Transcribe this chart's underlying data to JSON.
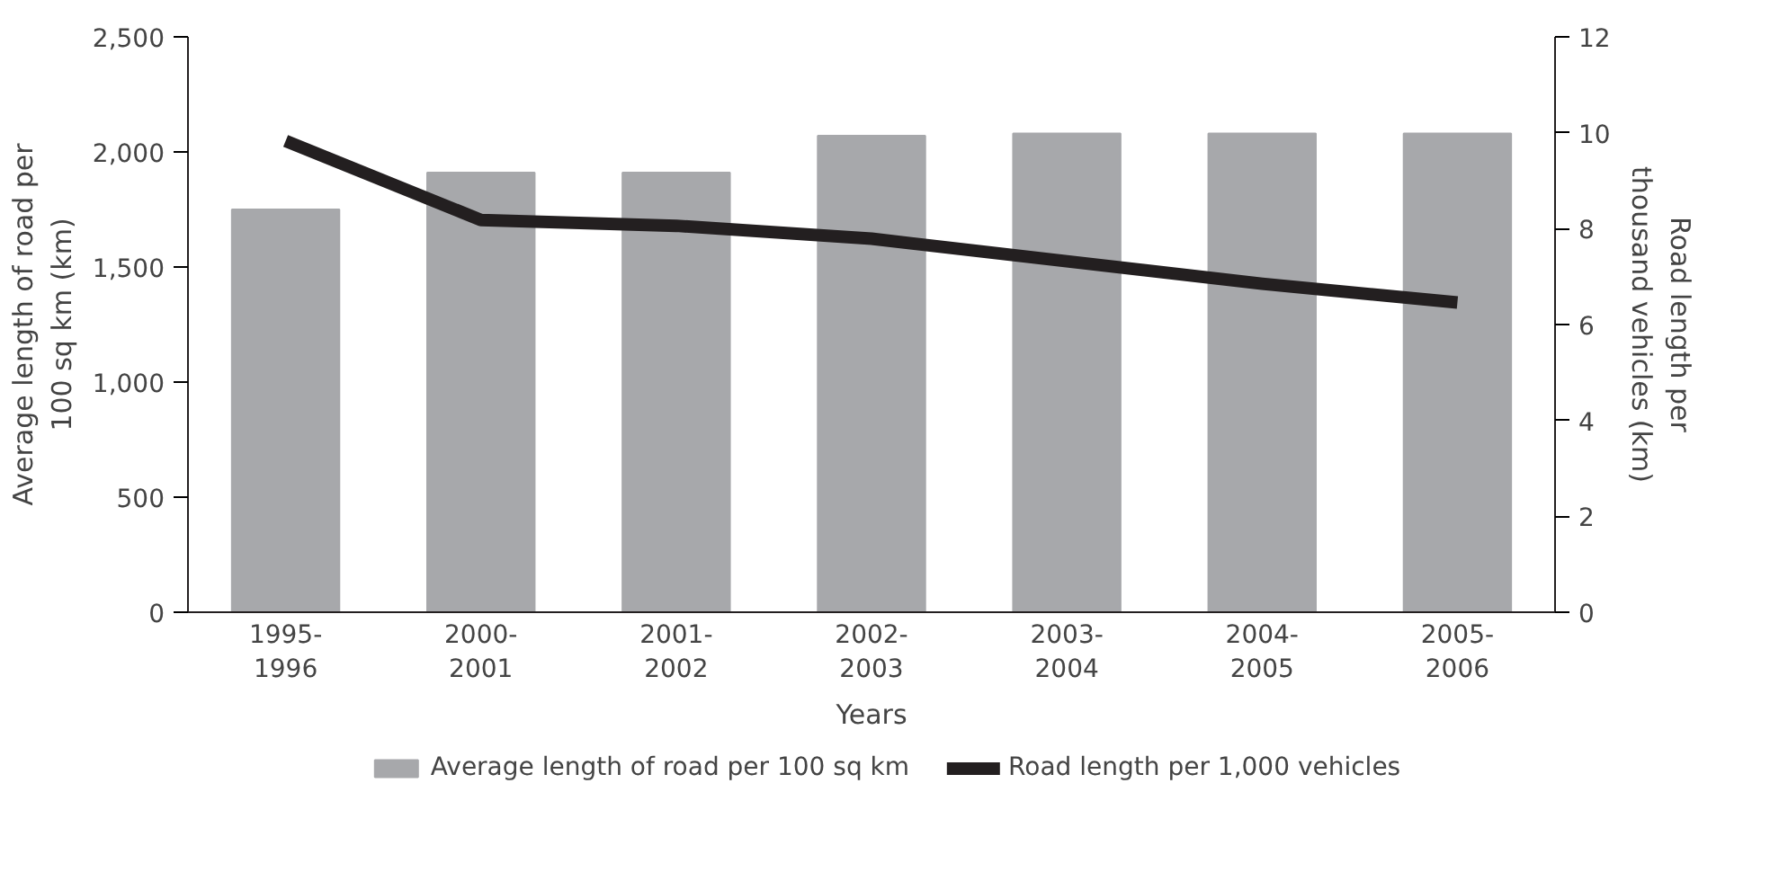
{
  "chart_data": {
    "type": "bar",
    "xlabel": "Years",
    "ylabel": "Average length of road per 100 sq km (km)",
    "y2label": "Road length per thousand vehicles (km)",
    "categories": [
      "1995-\n1996",
      "2000-\n2001",
      "2001-\n2002",
      "2002-\n2003",
      "2003-\n2004",
      "2004-\n2005",
      "2005-\n2006"
    ],
    "series": [
      {
        "name": "Average length of road per 100 sq km",
        "color": "#a7a8ab",
        "values": [
          1750,
          1910,
          1910,
          2070,
          2080,
          2080,
          2080
        ]
      },
      {
        "name": "Road length per 1,000 vehicles",
        "type": "line",
        "axis": "y2",
        "color": "#231f20",
        "values": [
          9.83,
          8.18,
          8.06,
          7.79,
          7.32,
          6.85,
          6.46
        ]
      }
    ],
    "ylim": [
      0,
      2500
    ],
    "yticks": [
      {
        "value": 0,
        "label": "0"
      },
      {
        "value": 500,
        "label": "500"
      },
      {
        "value": 1000,
        "label": "1,000"
      },
      {
        "value": 1500,
        "label": "1,500"
      },
      {
        "value": 2000,
        "label": "2,000"
      },
      {
        "value": 2500,
        "label": "2,500"
      }
    ],
    "y2lim": [
      0,
      12
    ],
    "y2ticks": [
      0,
      2,
      4,
      6,
      8,
      10,
      12
    ],
    "grid": false,
    "legend": "bottom",
    "line_style": "solid",
    "marker": "none"
  }
}
